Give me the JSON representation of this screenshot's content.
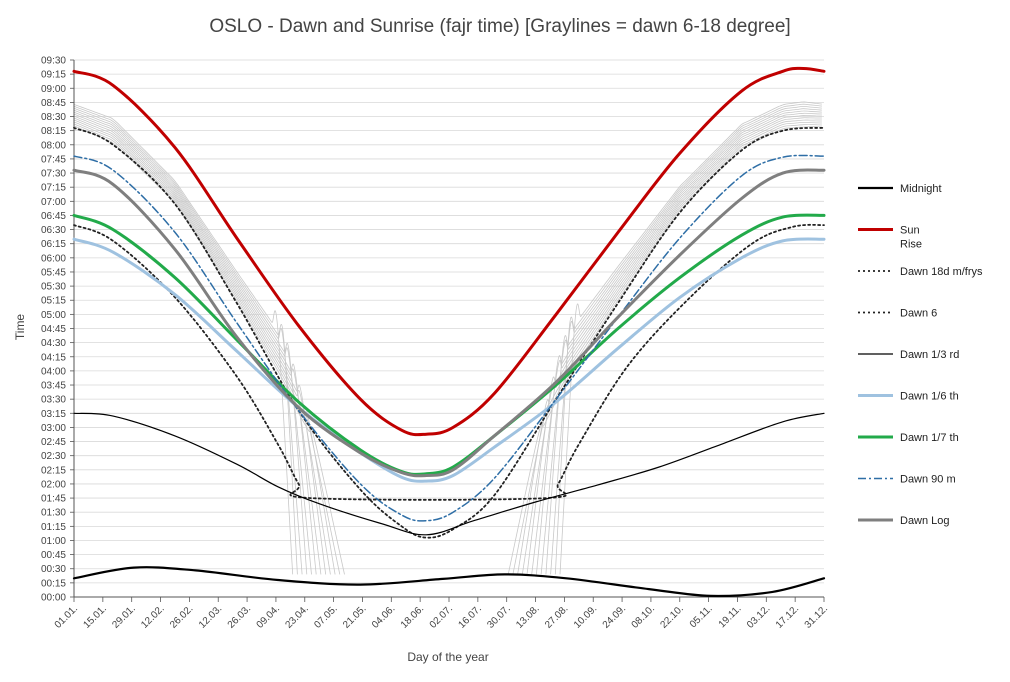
{
  "chart_data": {
    "type": "line",
    "title": "OSLO - Dawn and Sunrise (fajr time) [Graylines = dawn 6-18 degree]",
    "xlabel": "Day of the year",
    "ylabel": "Time",
    "x_ticks": [
      "01.01.",
      "15.01.",
      "29.01.",
      "12.02.",
      "26.02.",
      "12.03.",
      "26.03.",
      "09.04.",
      "23.04.",
      "07.05.",
      "21.05.",
      "04.06.",
      "18.06.",
      "02.07.",
      "16.07.",
      "30.07.",
      "13.08.",
      "27.08.",
      "10.09.",
      "24.09.",
      "08.10.",
      "22.10.",
      "05.11.",
      "19.11.",
      "03.12.",
      "17.12.",
      "31.12."
    ],
    "x_tick_days": [
      1,
      15,
      29,
      43,
      57,
      71,
      85,
      99,
      113,
      127,
      141,
      155,
      169,
      183,
      197,
      211,
      225,
      239,
      253,
      267,
      281,
      295,
      309,
      323,
      337,
      351,
      365
    ],
    "y_ticks": [
      "00:00",
      "00:15",
      "00:30",
      "00:45",
      "01:00",
      "01:15",
      "01:30",
      "01:45",
      "02:00",
      "02:15",
      "02:30",
      "02:45",
      "03:00",
      "03:15",
      "03:30",
      "03:45",
      "04:00",
      "04:15",
      "04:30",
      "04:45",
      "05:00",
      "05:15",
      "05:30",
      "05:45",
      "06:00",
      "06:15",
      "06:30",
      "06:45",
      "07:00",
      "07:15",
      "07:30",
      "07:45",
      "08:00",
      "08:15",
      "08:30",
      "08:45",
      "09:00",
      "09:15",
      "09:30"
    ],
    "xlim": [
      1,
      365
    ],
    "ylim_hours": [
      0,
      9.5
    ],
    "grid": "horizontal",
    "legend_position": "right",
    "series": [
      {
        "name": "Midnight",
        "color": "#000000",
        "dash": "solid",
        "width": 2.2,
        "x": [
          1,
          30,
          60,
          100,
          140,
          180,
          210,
          240,
          280,
          310,
          340,
          365
        ],
        "y": [
          0.33,
          0.52,
          0.47,
          0.3,
          0.22,
          0.32,
          0.4,
          0.33,
          0.14,
          0.02,
          0.09,
          0.33
        ]
      },
      {
        "name": "Sun\nRise",
        "color": "#c00000",
        "dash": "solid",
        "width": 3,
        "x": [
          1,
          20,
          50,
          80,
          110,
          140,
          160,
          172,
          185,
          205,
          235,
          265,
          295,
          325,
          345,
          355,
          365
        ],
        "y": [
          9.3,
          9.05,
          7.95,
          6.35,
          4.8,
          3.5,
          2.95,
          2.88,
          3.0,
          3.6,
          5.0,
          6.45,
          7.85,
          8.95,
          9.3,
          9.35,
          9.3
        ]
      },
      {
        "name": "Dawn 18d m/frys",
        "color": "#222222",
        "dash": "2,3",
        "width": 1.8,
        "x": [
          1,
          20,
          50,
          80,
          100,
          110,
          116,
          230,
          236,
          246,
          270,
          300,
          330,
          350,
          365
        ],
        "y": [
          6.58,
          6.3,
          5.3,
          3.9,
          2.7,
          2.0,
          1.75,
          1.75,
          2.0,
          2.7,
          4.1,
          5.3,
          6.25,
          6.55,
          6.58
        ]
      },
      {
        "name": "Dawn 6",
        "color": "#222222",
        "dash": "2,3",
        "width": 1.8,
        "x": [
          1,
          20,
          50,
          80,
          110,
          140,
          160,
          172,
          185,
          205,
          235,
          265,
          295,
          325,
          345,
          365
        ],
        "y": [
          8.3,
          8.0,
          6.95,
          5.2,
          3.3,
          1.9,
          1.25,
          1.05,
          1.2,
          1.8,
          3.5,
          5.2,
          6.8,
          7.9,
          8.25,
          8.3
        ]
      },
      {
        "name": "Dawn 1/3 rd",
        "color": "#000000",
        "dash": "solid",
        "width": 1.2,
        "x": [
          1,
          20,
          50,
          80,
          100,
          120,
          150,
          172,
          195,
          225,
          255,
          285,
          315,
          345,
          365
        ],
        "y": [
          3.25,
          3.2,
          2.85,
          2.35,
          1.95,
          1.65,
          1.3,
          1.1,
          1.35,
          1.68,
          1.98,
          2.3,
          2.7,
          3.1,
          3.25
        ]
      },
      {
        "name": "Dawn 1/6 th",
        "color": "#9fc2e0",
        "dash": "solid",
        "width": 3,
        "x": [
          1,
          20,
          50,
          80,
          110,
          140,
          160,
          172,
          185,
          205,
          235,
          265,
          295,
          325,
          345,
          365
        ],
        "y": [
          6.33,
          6.1,
          5.35,
          4.35,
          3.35,
          2.55,
          2.12,
          2.05,
          2.15,
          2.65,
          3.45,
          4.4,
          5.3,
          6.0,
          6.3,
          6.33
        ]
      },
      {
        "name": "Dawn 1/7 th",
        "color": "#22aa4a",
        "dash": "solid",
        "width": 3,
        "x": [
          1,
          20,
          50,
          80,
          110,
          140,
          160,
          172,
          185,
          205,
          235,
          265,
          295,
          325,
          345,
          365
        ],
        "y": [
          6.75,
          6.5,
          5.65,
          4.55,
          3.45,
          2.6,
          2.22,
          2.18,
          2.3,
          2.85,
          3.75,
          4.75,
          5.65,
          6.4,
          6.72,
          6.75
        ]
      },
      {
        "name": "Dawn 90 m",
        "color": "#2e6ea6",
        "dash": "8,3,2,3",
        "width": 1.5,
        "x": [
          1,
          20,
          50,
          80,
          110,
          140,
          160,
          172,
          185,
          205,
          235,
          265,
          295,
          325,
          345,
          365
        ],
        "y": [
          7.8,
          7.55,
          6.45,
          4.85,
          3.3,
          2.0,
          1.45,
          1.35,
          1.5,
          2.1,
          3.5,
          4.95,
          6.35,
          7.45,
          7.78,
          7.8
        ]
      },
      {
        "name": "Dawn Log",
        "color": "#7f7f7f",
        "dash": "solid",
        "width": 3,
        "x": [
          1,
          20,
          50,
          80,
          110,
          140,
          160,
          172,
          185,
          205,
          235,
          265,
          295,
          325,
          345,
          365
        ],
        "y": [
          7.55,
          7.3,
          6.15,
          4.6,
          3.35,
          2.55,
          2.2,
          2.15,
          2.25,
          2.85,
          3.8,
          4.95,
          6.05,
          7.05,
          7.5,
          7.55
        ]
      }
    ]
  }
}
